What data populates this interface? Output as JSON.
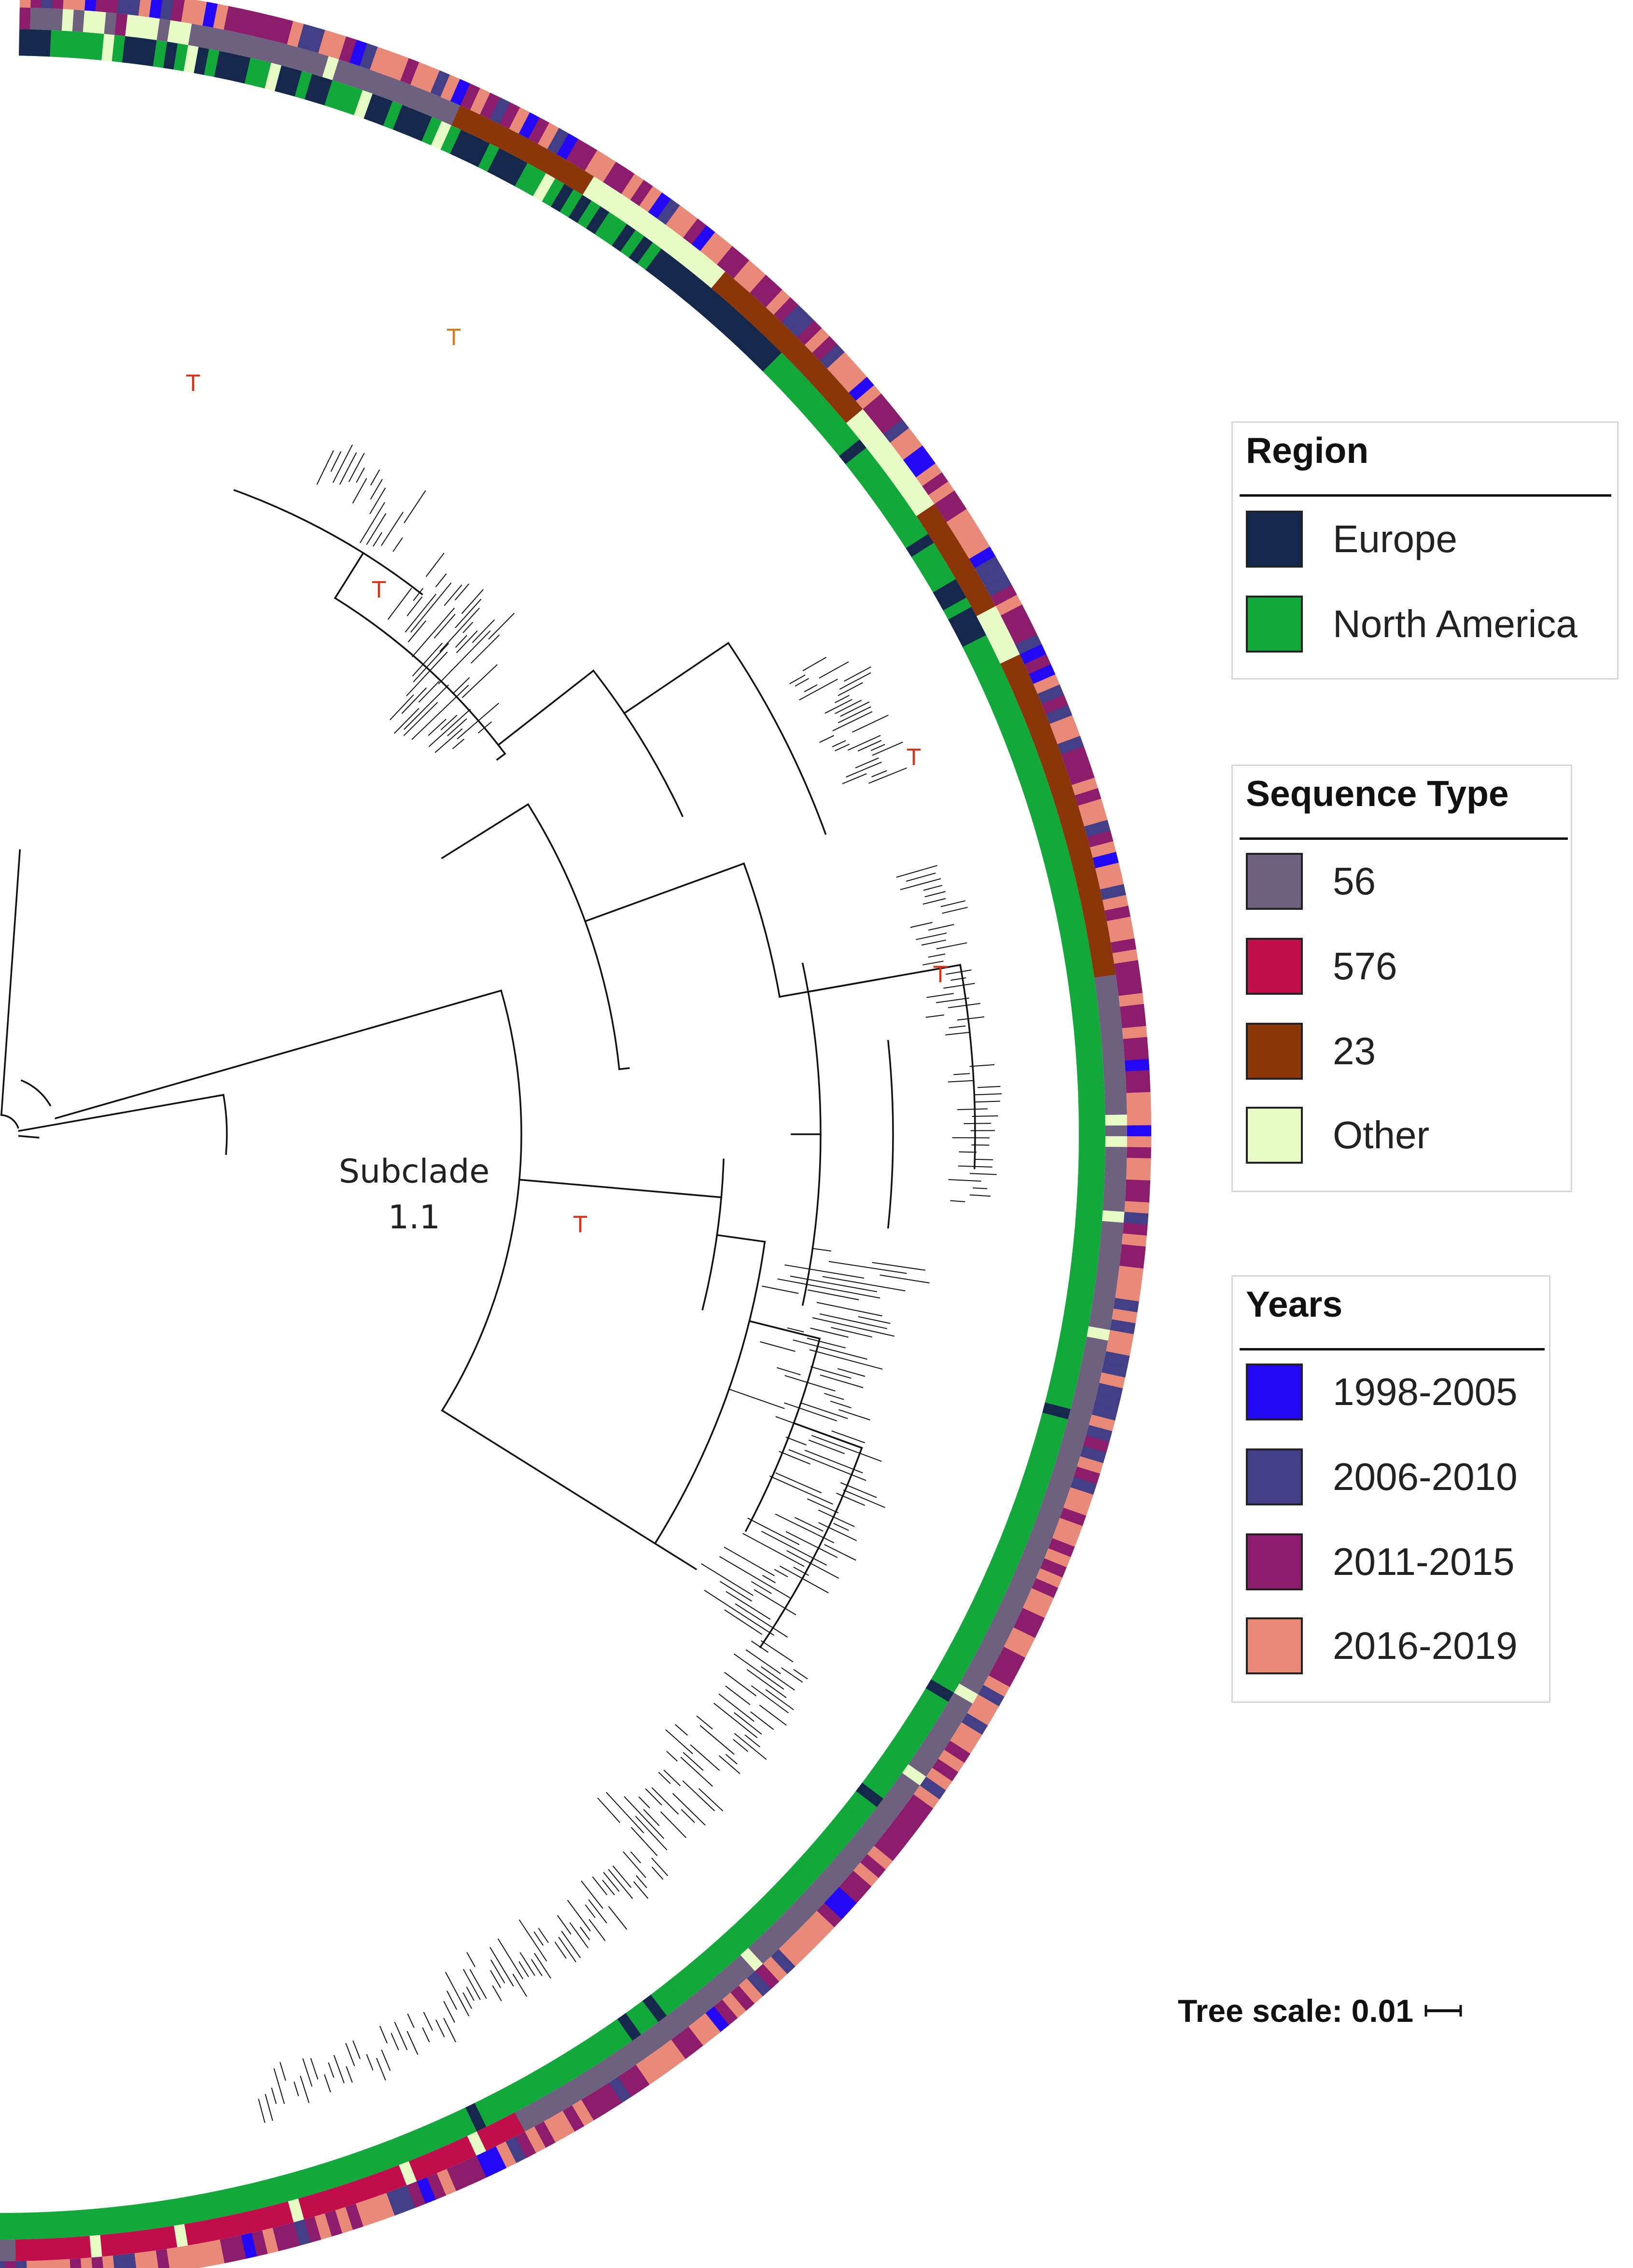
{
  "legends": {
    "region": {
      "title": "Region",
      "items": [
        {
          "label": "Europe",
          "color": "#14284b"
        },
        {
          "label": "North America",
          "color": "#12a83c"
        }
      ]
    },
    "sequence_type": {
      "title": "Sequence Type",
      "items": [
        {
          "label": "56",
          "color": "#6e6180"
        },
        {
          "label": "576",
          "color": "#c00e4a"
        },
        {
          "label": "23",
          "color": "#8b3608"
        },
        {
          "label": "Other",
          "color": "#e6fbc6"
        }
      ]
    },
    "years": {
      "title": "Years",
      "items": [
        {
          "label": "1998-2005",
          "color": "#2208f4"
        },
        {
          "label": "2006-2010",
          "color": "#423f86"
        },
        {
          "label": "2011-2015",
          "color": "#8c1d6c"
        },
        {
          "label": "2016-2019",
          "color": "#e98a78"
        }
      ]
    }
  },
  "tree": {
    "subclade_label_line1": "Subclade",
    "subclade_label_line2": "1.1",
    "marker_label": "T",
    "marker_color": "#d93218",
    "scale_label": "Tree scale: 0.01"
  }
}
